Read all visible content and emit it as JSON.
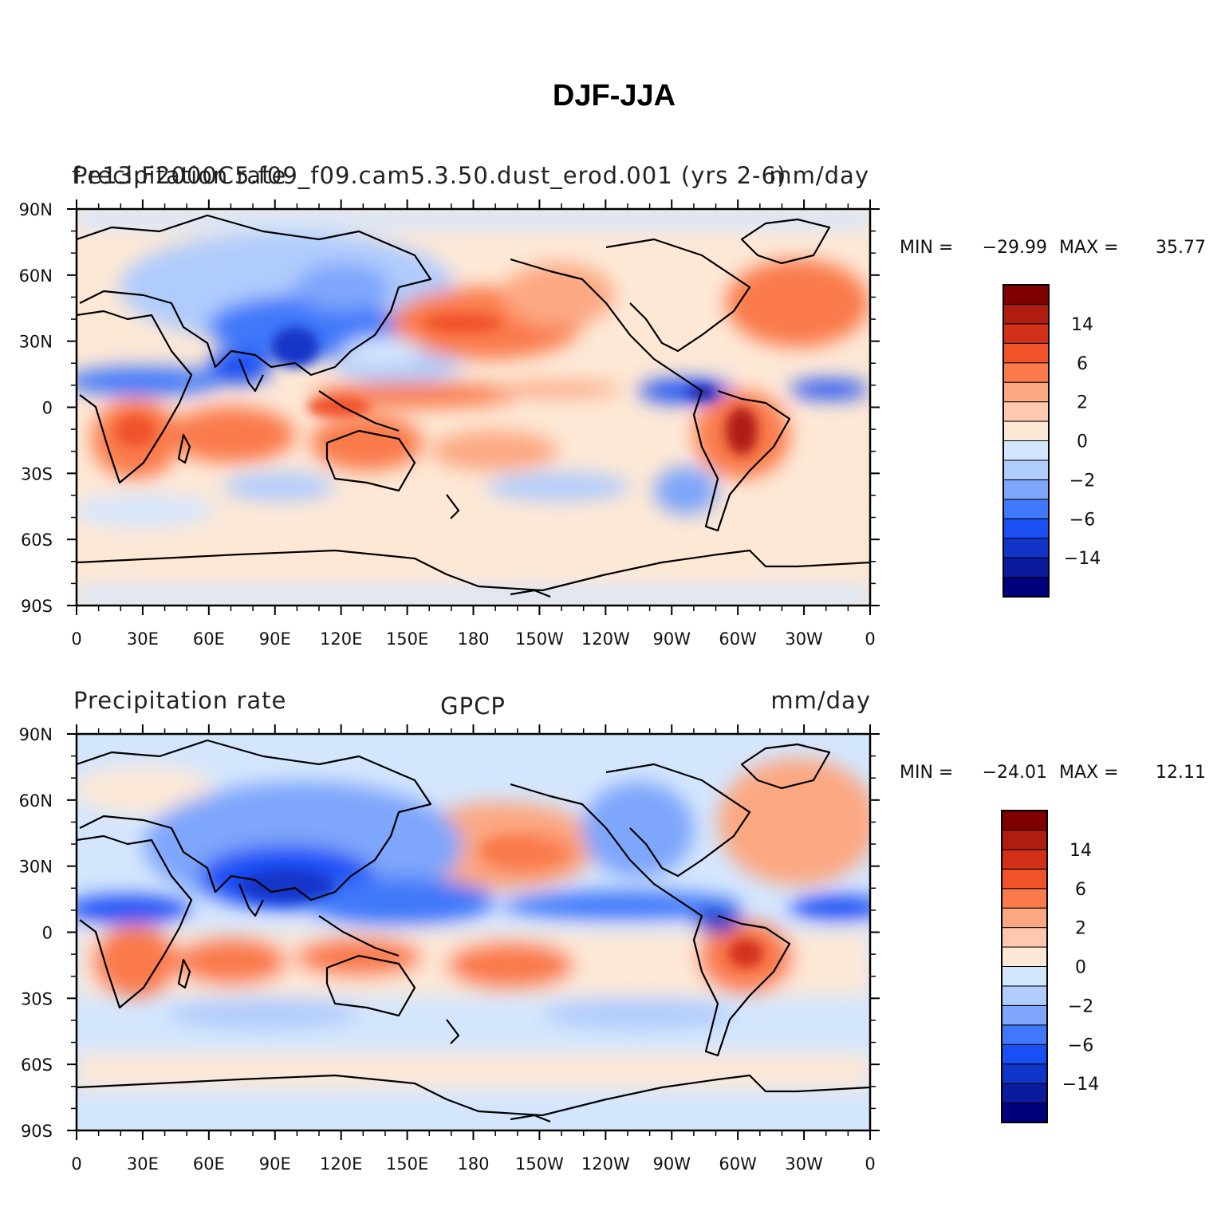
{
  "title": "DJF-JJA",
  "colorbar_colors": [
    "#00007f",
    "#0c1a9e",
    "#1235c9",
    "#1a4ff5",
    "#3f78fa",
    "#7ea6fb",
    "#b0ccfd",
    "#d4e6fd",
    "#fde8d6",
    "#fdc8ad",
    "#fca882",
    "#fa7a4c",
    "#f0522a",
    "#d3301a",
    "#b01c12",
    "#800000"
  ],
  "colorbar_labels": [
    "14",
    "6",
    "2",
    "0",
    "−2",
    "−6",
    "−14"
  ],
  "panels": [
    {
      "left_title": "Precipitation rate",
      "center_title": "f.e13.F2000C5.f09_f09.cam5.3.50.dust_erod.001  (yrs 2-6)",
      "right_title": "mm/day",
      "min_label": "MIN =",
      "min_value": "−29.99",
      "max_label": "MAX =",
      "max_value": "35.77"
    },
    {
      "left_title": "Precipitation rate",
      "center_title": "GPCP",
      "right_title": "mm/day",
      "min_label": "MIN =",
      "min_value": "−24.01",
      "max_label": "MAX =",
      "max_value": "12.11"
    }
  ],
  "chart_data": {
    "type": "heatmap",
    "title": "DJF-JJA",
    "variable": "Precipitation rate",
    "units": "mm/day",
    "x_ticks": [
      "0",
      "30E",
      "60E",
      "90E",
      "120E",
      "150E",
      "180",
      "150W",
      "120W",
      "90W",
      "60W",
      "30W",
      "0"
    ],
    "y_ticks": [
      "90N",
      "60N",
      "30N",
      "0",
      "30S",
      "60S",
      "90S"
    ],
    "x_range": [
      0,
      360
    ],
    "y_range": [
      -90,
      90
    ],
    "colorbar_levels": [
      -14,
      -6,
      -2,
      0,
      2,
      6,
      14
    ],
    "panels": [
      {
        "name": "f.e13.F2000C5.f09_f09.cam5.3.50.dust_erod.001 (yrs 2-6)",
        "min": -29.99,
        "max": 35.77
      },
      {
        "name": "GPCP",
        "min": -24.01,
        "max": 12.11
      }
    ]
  }
}
